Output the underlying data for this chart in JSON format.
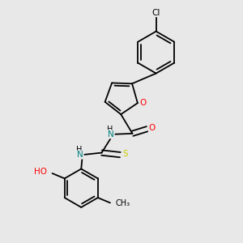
{
  "bg_color": "#e8e8e8",
  "bond_color": "#000000",
  "atom_colors": {
    "O": "#ff0000",
    "N": "#008080",
    "S": "#cccc00",
    "Cl": "#000000",
    "H": "#000000",
    "C": "#000000"
  },
  "figsize": [
    3.0,
    3.0
  ],
  "dpi": 100
}
